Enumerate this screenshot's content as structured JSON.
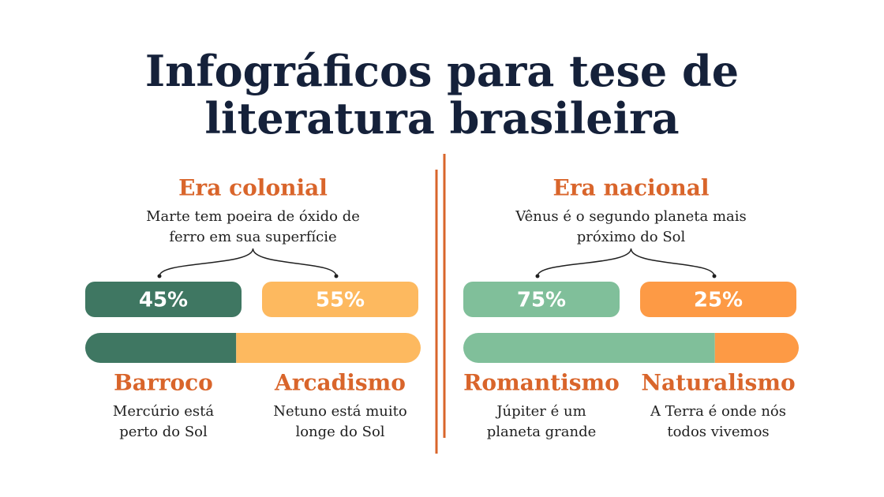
{
  "title": {
    "lines": [
      "Infográficos para tese de",
      "literatura brasileira"
    ]
  },
  "panels": [
    {
      "heading": "Era colonial",
      "description": [
        "Marte tem poeira de óxido de",
        "ferro em sua superfície"
      ],
      "segments": [
        {
          "value": 45,
          "value_label": "45%",
          "color": "#3f7762",
          "name": "Barroco",
          "description": [
            "Mercúrio está",
            "perto do Sol"
          ]
        },
        {
          "value": 55,
          "value_label": "55%",
          "color": "#fdb95f",
          "name": "Arcadismo",
          "description": [
            "Netuno está muito",
            "longe do Sol"
          ]
        }
      ]
    },
    {
      "heading": "Era nacional",
      "description": [
        "Vênus é o segundo planeta mais",
        "próximo do Sol"
      ],
      "segments": [
        {
          "value": 75,
          "value_label": "75%",
          "color": "#80bf9a",
          "name": "Romantismo",
          "description": [
            "Júpiter é um",
            "planeta grande"
          ]
        },
        {
          "value": 25,
          "value_label": "25%",
          "color": "#fd9a45",
          "name": "Naturalismo",
          "description": [
            "A Terra é onde nós",
            "todos vivemos"
          ]
        }
      ]
    }
  ]
}
